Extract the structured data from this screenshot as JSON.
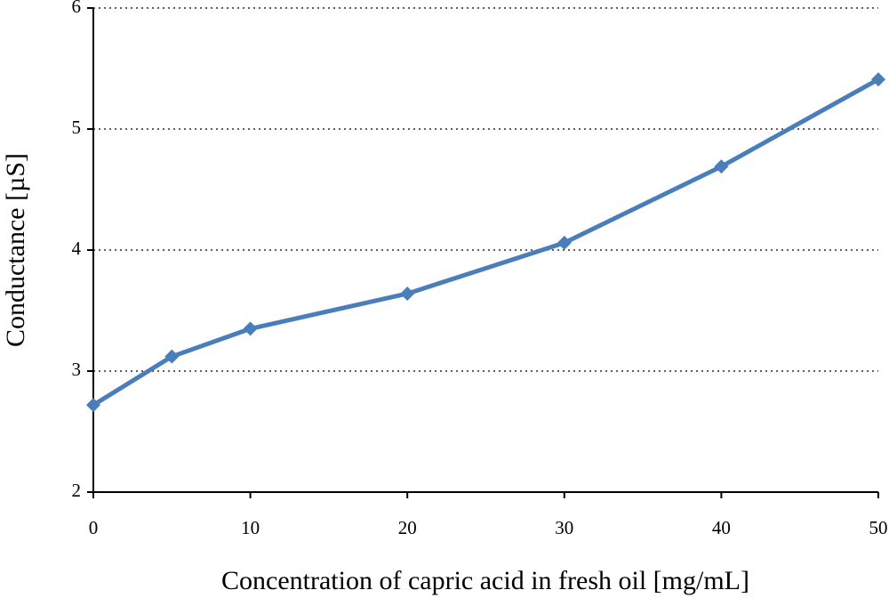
{
  "chart_data": {
    "type": "line",
    "x_label": "Concentration of capric acid in fresh oil [mg/mL]",
    "y_label": "Conductance [µS]",
    "x": [
      0,
      5,
      10,
      20,
      30,
      40,
      50
    ],
    "series": [
      {
        "color": "#4a7ebb",
        "values": [
          2.72,
          3.12,
          3.35,
          3.64,
          4.06,
          4.69,
          5.41
        ]
      }
    ],
    "xlim": [
      0,
      50
    ],
    "xticks": [
      0,
      10,
      20,
      30,
      40,
      50
    ],
    "ylim": [
      2,
      6
    ],
    "yticks": [
      2,
      3,
      4,
      5,
      6
    ],
    "grid": true
  }
}
